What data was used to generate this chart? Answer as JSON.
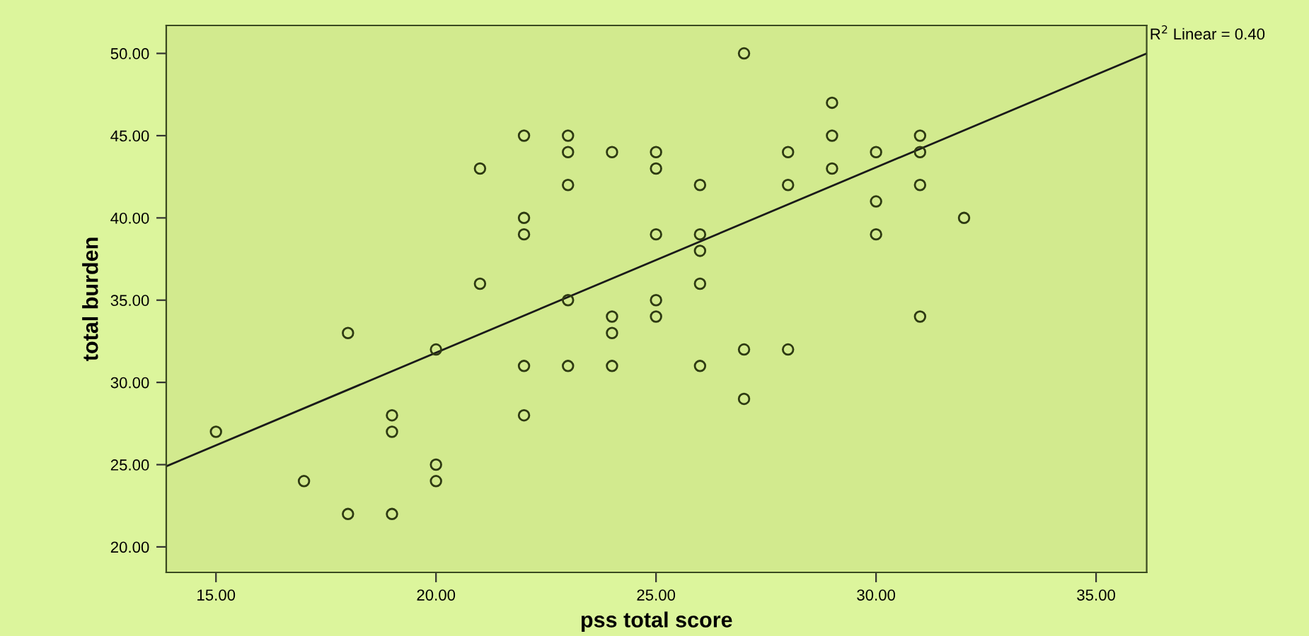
{
  "chart_data": {
    "type": "scatter",
    "xlabel": "pss total score",
    "ylabel": "total burden",
    "xlim": [
      13.87,
      36.15
    ],
    "ylim": [
      18.45,
      51.7
    ],
    "xticks": [
      {
        "value": 15,
        "label": "15.00"
      },
      {
        "value": 20,
        "label": "20.00"
      },
      {
        "value": 25,
        "label": "25.00"
      },
      {
        "value": 30,
        "label": "30.00"
      },
      {
        "value": 35,
        "label": "35.00"
      }
    ],
    "yticks": [
      {
        "value": 20,
        "label": "20.00"
      },
      {
        "value": 25,
        "label": "25.00"
      },
      {
        "value": 30,
        "label": "30.00"
      },
      {
        "value": 35,
        "label": "35.00"
      },
      {
        "value": 40,
        "label": "40.00"
      },
      {
        "value": 45,
        "label": "45.00"
      },
      {
        "value": 50,
        "label": "50.00"
      }
    ],
    "grid": false,
    "legend": false,
    "annotations": [
      "R$^{2}$ Linear = 0.40"
    ],
    "series": [
      {
        "marker": "circle",
        "color": "#2e3a12",
        "x": [
          15,
          17,
          18,
          18,
          19,
          19,
          19,
          20,
          20,
          20,
          21,
          21,
          22,
          22,
          22,
          22,
          22,
          23,
          23,
          23,
          23,
          23,
          24,
          24,
          24,
          24,
          25,
          25,
          25,
          25,
          25,
          26,
          26,
          26,
          26,
          26,
          27,
          27,
          27,
          28,
          28,
          28,
          29,
          29,
          29,
          30,
          30,
          30,
          31,
          31,
          31,
          31,
          32
        ],
        "values": [
          27,
          24,
          33,
          22,
          28,
          27,
          22,
          32,
          25,
          24,
          43,
          36,
          45,
          40,
          39,
          31,
          28,
          45,
          44,
          42,
          35,
          31,
          44,
          34,
          33,
          31,
          44,
          43,
          39,
          35,
          34,
          42,
          39,
          38,
          36,
          31,
          50,
          32,
          29,
          44,
          42,
          32,
          47,
          45,
          43,
          44,
          41,
          39,
          45,
          44,
          42,
          34,
          40
        ]
      },
      {
        "type": "line",
        "color": "#1a1a1a",
        "x": [
          13.87,
          36.15
        ],
        "values": [
          24.9,
          50.0
        ],
        "line_style": "solid"
      }
    ]
  }
}
